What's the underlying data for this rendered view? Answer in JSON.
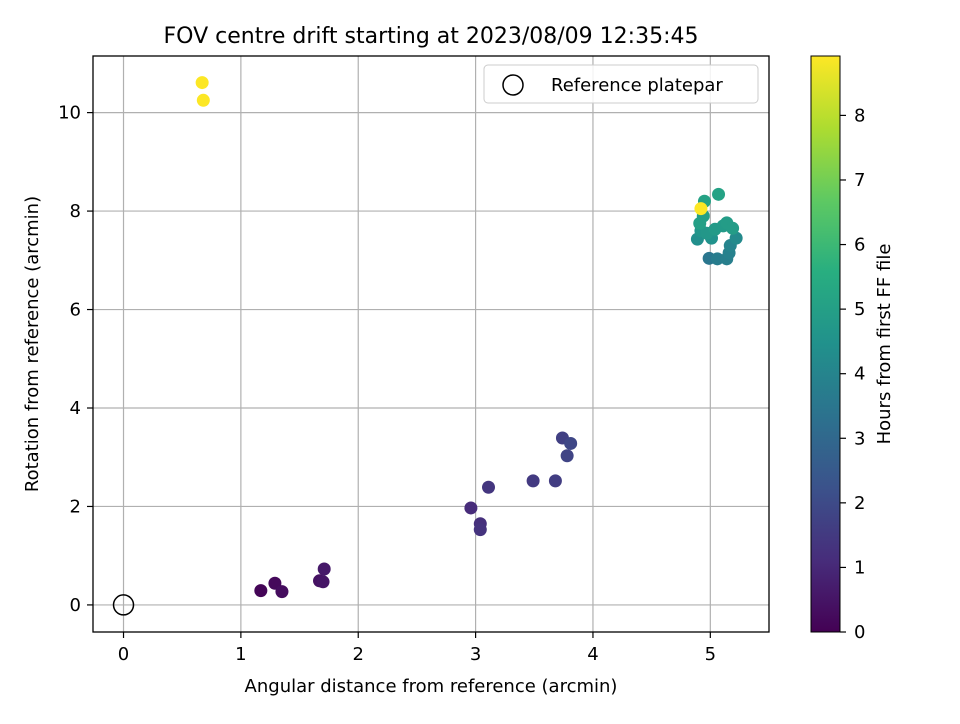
{
  "chart_data": {
    "type": "scatter",
    "title": "FOV centre drift starting at 2023/08/09 12:35:45",
    "xlabel": "Angular distance from reference (arcmin)",
    "ylabel": "Rotation from reference (arcmin)",
    "xlim": [
      -0.26,
      5.5
    ],
    "ylim": [
      -0.55,
      11.15
    ],
    "xticks": [
      0,
      1,
      2,
      3,
      4,
      5
    ],
    "yticks": [
      0,
      2,
      4,
      6,
      8,
      10
    ],
    "grid": true,
    "legend": {
      "position": "top-right",
      "entries": [
        "Reference platepar"
      ]
    },
    "reference_point": {
      "x": 0,
      "y": 0
    },
    "colorbar": {
      "label": "Hours from first FF file",
      "range": [
        0,
        8.92
      ],
      "ticks": [
        0,
        1,
        2,
        3,
        4,
        5,
        6,
        7,
        8
      ],
      "colormap": "viridis"
    },
    "points": [
      {
        "x": 1.17,
        "y": 0.29,
        "c": 0.1
      },
      {
        "x": 1.29,
        "y": 0.44,
        "c": 0.2
      },
      {
        "x": 1.35,
        "y": 0.27,
        "c": 0.3
      },
      {
        "x": 1.67,
        "y": 0.49,
        "c": 0.4
      },
      {
        "x": 1.7,
        "y": 0.47,
        "c": 0.5
      },
      {
        "x": 1.71,
        "y": 0.73,
        "c": 0.6
      },
      {
        "x": 2.96,
        "y": 1.97,
        "c": 1.1
      },
      {
        "x": 3.04,
        "y": 1.65,
        "c": 1.2
      },
      {
        "x": 3.04,
        "y": 1.53,
        "c": 1.3
      },
      {
        "x": 3.11,
        "y": 2.39,
        "c": 1.4
      },
      {
        "x": 3.49,
        "y": 2.52,
        "c": 1.5
      },
      {
        "x": 3.68,
        "y": 2.52,
        "c": 1.6
      },
      {
        "x": 3.74,
        "y": 3.39,
        "c": 1.7
      },
      {
        "x": 3.78,
        "y": 3.03,
        "c": 1.8
      },
      {
        "x": 3.81,
        "y": 3.28,
        "c": 1.9
      },
      {
        "x": 4.99,
        "y": 7.04,
        "c": 3.5
      },
      {
        "x": 5.06,
        "y": 7.03,
        "c": 3.7
      },
      {
        "x": 5.14,
        "y": 7.03,
        "c": 3.8
      },
      {
        "x": 5.16,
        "y": 7.15,
        "c": 3.9
      },
      {
        "x": 5.17,
        "y": 7.3,
        "c": 4.0
      },
      {
        "x": 5.22,
        "y": 7.45,
        "c": 4.2
      },
      {
        "x": 4.89,
        "y": 7.43,
        "c": 4.4
      },
      {
        "x": 5.01,
        "y": 7.45,
        "c": 4.5
      },
      {
        "x": 4.92,
        "y": 7.6,
        "c": 4.6
      },
      {
        "x": 4.97,
        "y": 7.55,
        "c": 4.7
      },
      {
        "x": 5.04,
        "y": 7.63,
        "c": 4.8
      },
      {
        "x": 5.11,
        "y": 7.7,
        "c": 4.8
      },
      {
        "x": 5.14,
        "y": 7.76,
        "c": 4.9
      },
      {
        "x": 5.19,
        "y": 7.65,
        "c": 4.9
      },
      {
        "x": 4.91,
        "y": 7.75,
        "c": 5.0
      },
      {
        "x": 4.94,
        "y": 7.9,
        "c": 5.0
      },
      {
        "x": 4.95,
        "y": 8.2,
        "c": 5.1
      },
      {
        "x": 5.07,
        "y": 8.34,
        "c": 5.1
      },
      {
        "x": 4.92,
        "y": 8.05,
        "c": 8.9
      },
      {
        "x": 0.67,
        "y": 10.61,
        "c": 8.9
      },
      {
        "x": 0.68,
        "y": 10.25,
        "c": 8.9
      }
    ]
  }
}
